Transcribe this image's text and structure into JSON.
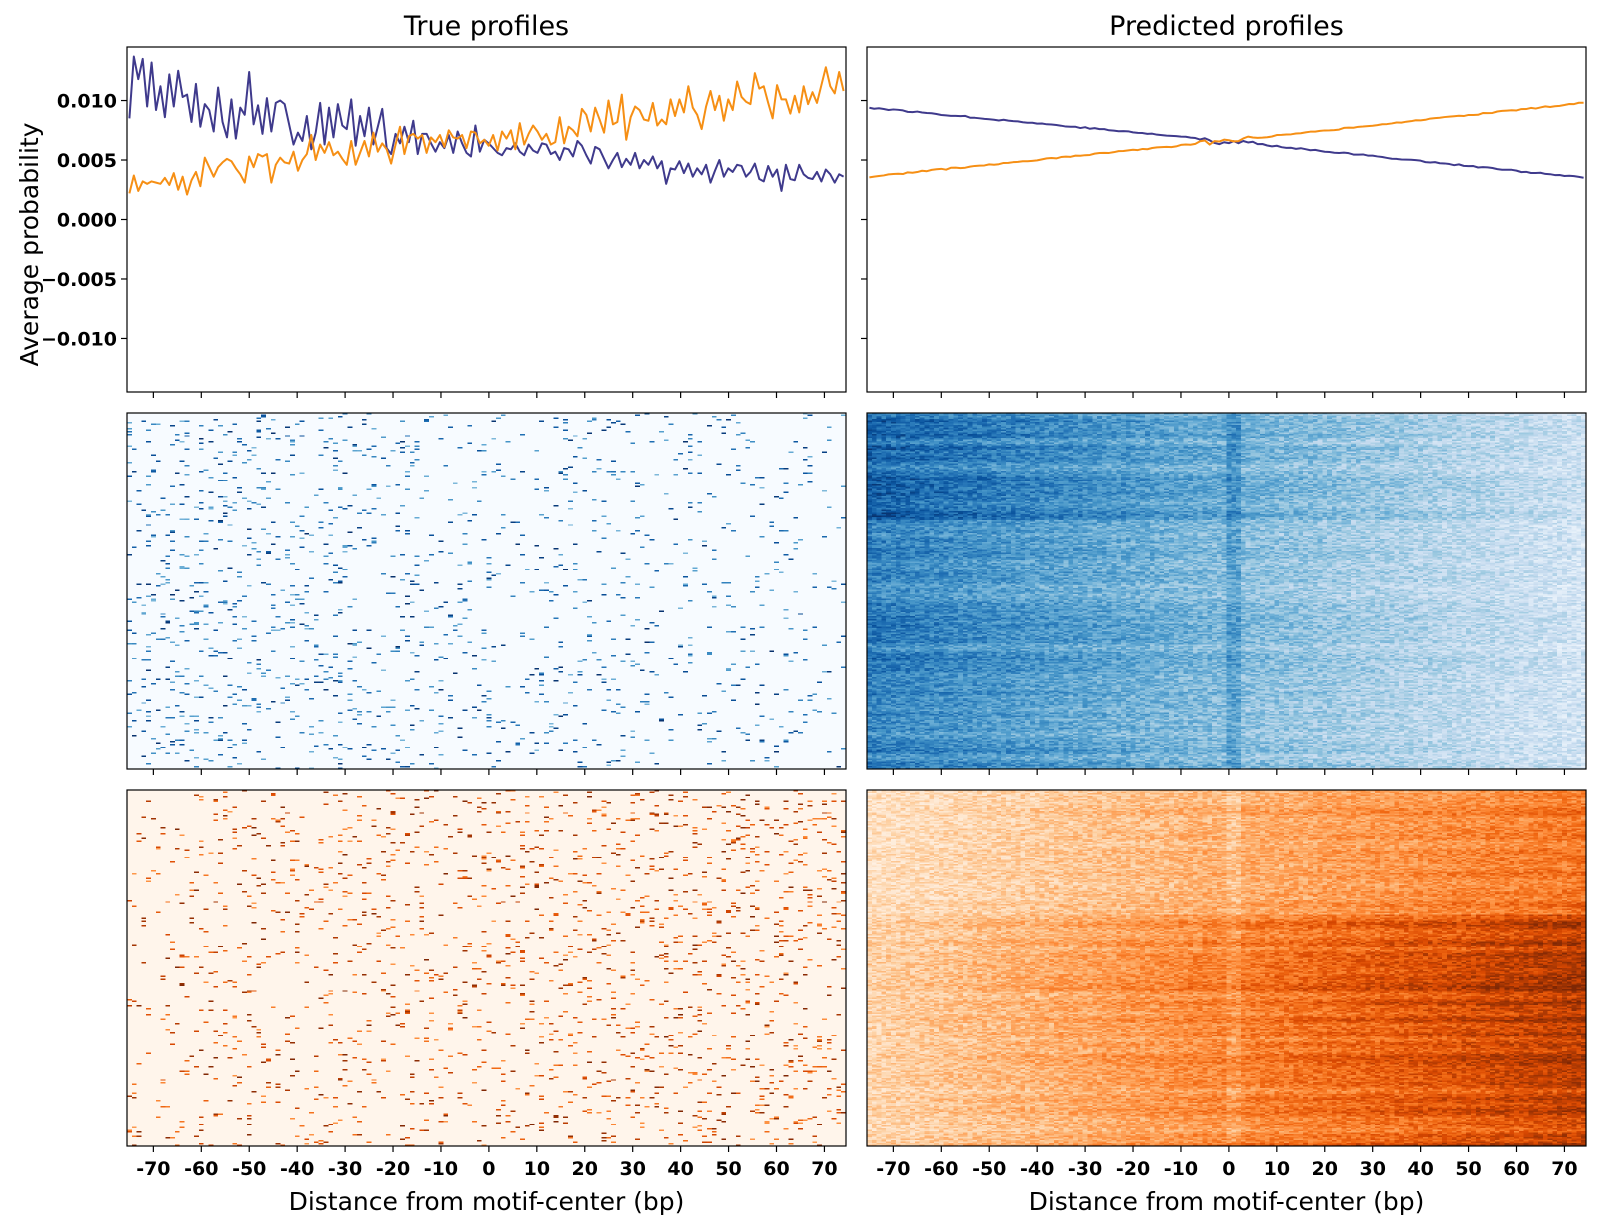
{
  "chart_data": [
    {
      "type": "line",
      "panel": "true-profile-line",
      "title": "True profiles",
      "xlabel": "",
      "ylabel": "Average probability",
      "xlim": [
        -75.5,
        74.5
      ],
      "ylim": [
        -0.0145,
        0.0145
      ],
      "xticks": [
        -70,
        -60,
        -50,
        -40,
        -30,
        -20,
        -10,
        0,
        10,
        20,
        30,
        40,
        50,
        60,
        70
      ],
      "yticks": [
        0.01,
        0.005,
        0.0,
        -0.005,
        -0.01
      ],
      "ytick_labels": [
        "0.010",
        "0.005",
        "0.000",
        "−0.005",
        "−0.010"
      ],
      "show_xtick_labels": false,
      "series": [
        {
          "color": "#3f3a8c",
          "values": [
            0.0085,
            0.0137,
            0.0118,
            0.0135,
            0.0095,
            0.0132,
            0.0092,
            0.0112,
            0.0086,
            0.0122,
            0.0095,
            0.0125,
            0.0103,
            0.0105,
            0.0082,
            0.0114,
            0.0078,
            0.0097,
            0.0092,
            0.0074,
            0.0111,
            0.0082,
            0.0069,
            0.0101,
            0.0068,
            0.0094,
            0.0088,
            0.0124,
            0.008,
            0.0096,
            0.0072,
            0.0102,
            0.0074,
            0.0098,
            0.01,
            0.0097,
            0.008,
            0.0063,
            0.0073,
            0.0066,
            0.0087,
            0.0059,
            0.0073,
            0.0098,
            0.0063,
            0.0094,
            0.0069,
            0.0097,
            0.0079,
            0.0076,
            0.0101,
            0.0062,
            0.0087,
            0.007,
            0.0094,
            0.0063,
            0.0078,
            0.0093,
            0.006,
            0.0055,
            0.0072,
            0.0064,
            0.0078,
            0.0065,
            0.0083,
            0.0055,
            0.0072,
            0.0072,
            0.0064,
            0.0057,
            0.0065,
            0.006,
            0.0071,
            0.0056,
            0.0074,
            0.0064,
            0.0056,
            0.0053,
            0.0079,
            0.0057,
            0.0067,
            0.0064,
            0.006,
            0.0056,
            0.0054,
            0.006,
            0.0059,
            0.0064,
            0.0057,
            0.0054,
            0.0063,
            0.0058,
            0.0056,
            0.0064,
            0.0063,
            0.0055,
            0.0057,
            0.005,
            0.006,
            0.0059,
            0.0053,
            0.0066,
            0.0062,
            0.0054,
            0.0047,
            0.0061,
            0.0059,
            0.0051,
            0.0043,
            0.005,
            0.0056,
            0.0044,
            0.0051,
            0.0046,
            0.0056,
            0.0043,
            0.005,
            0.0046,
            0.0053,
            0.0043,
            0.0049,
            0.003,
            0.0043,
            0.0042,
            0.0049,
            0.0039,
            0.0047,
            0.0036,
            0.0043,
            0.0038,
            0.0046,
            0.0031,
            0.0041,
            0.005,
            0.0036,
            0.0043,
            0.004,
            0.0046,
            0.0045,
            0.0036,
            0.004,
            0.0047,
            0.0034,
            0.0032,
            0.0045,
            0.0036,
            0.0042,
            0.0024,
            0.0046,
            0.0034,
            0.0033,
            0.0046,
            0.0038,
            0.0035,
            0.0034,
            0.004,
            0.0032,
            0.0042,
            0.0038,
            0.0031,
            0.0038,
            0.0036
          ]
        },
        {
          "color": "#f68f14",
          "values": [
            0.0022,
            0.0037,
            0.0024,
            0.0032,
            0.003,
            0.0032,
            0.0031,
            0.003,
            0.0035,
            0.0029,
            0.0039,
            0.0025,
            0.0036,
            0.0021,
            0.0033,
            0.004,
            0.0028,
            0.0052,
            0.0044,
            0.0036,
            0.0044,
            0.0048,
            0.0051,
            0.0049,
            0.0043,
            0.0038,
            0.0031,
            0.0053,
            0.0044,
            0.0055,
            0.0053,
            0.0055,
            0.0031,
            0.0046,
            0.0052,
            0.0048,
            0.0047,
            0.0057,
            0.0041,
            0.005,
            0.0055,
            0.0071,
            0.005,
            0.0063,
            0.0056,
            0.0065,
            0.0054,
            0.0057,
            0.0051,
            0.0046,
            0.0066,
            0.0046,
            0.0056,
            0.0066,
            0.0053,
            0.0073,
            0.0057,
            0.0064,
            0.0059,
            0.0047,
            0.0063,
            0.0078,
            0.0055,
            0.007,
            0.0072,
            0.0068,
            0.0071,
            0.0056,
            0.0069,
            0.0065,
            0.0071,
            0.0061,
            0.0075,
            0.0069,
            0.0068,
            0.0071,
            0.006,
            0.0074,
            0.0073,
            0.0064,
            0.0067,
            0.0062,
            0.0071,
            0.0058,
            0.0074,
            0.0068,
            0.0075,
            0.0059,
            0.0081,
            0.0063,
            0.0072,
            0.0079,
            0.0074,
            0.0067,
            0.0072,
            0.0063,
            0.0065,
            0.0086,
            0.0064,
            0.0078,
            0.0075,
            0.007,
            0.0093,
            0.0088,
            0.0074,
            0.0094,
            0.0084,
            0.0073,
            0.01,
            0.008,
            0.0082,
            0.0105,
            0.0067,
            0.0086,
            0.0095,
            0.0092,
            0.0084,
            0.0083,
            0.0098,
            0.0079,
            0.0084,
            0.008,
            0.0101,
            0.0087,
            0.0101,
            0.009,
            0.0112,
            0.0094,
            0.0088,
            0.0076,
            0.0095,
            0.0108,
            0.0092,
            0.0104,
            0.0083,
            0.0101,
            0.0092,
            0.0116,
            0.0103,
            0.0099,
            0.0097,
            0.0123,
            0.011,
            0.0112,
            0.0098,
            0.0085,
            0.0113,
            0.0101,
            0.0101,
            0.0089,
            0.0104,
            0.009,
            0.0112,
            0.0097,
            0.0107,
            0.0098,
            0.0113,
            0.0128,
            0.0112,
            0.0106,
            0.0124,
            0.0108
          ]
        }
      ]
    },
    {
      "type": "line",
      "panel": "predicted-profile-line",
      "title": "Predicted profiles",
      "xlabel": "",
      "ylabel": "",
      "xlim": [
        -75.5,
        74.5
      ],
      "ylim": [
        -0.0145,
        0.0145
      ],
      "xticks": [
        -70,
        -60,
        -50,
        -40,
        -30,
        -20,
        -10,
        0,
        10,
        20,
        30,
        40,
        50,
        60,
        70
      ],
      "yticks": [
        0.01,
        0.005,
        0.0,
        -0.005,
        -0.01
      ],
      "show_xtick_labels": false,
      "show_ytick_labels": false,
      "series": [
        {
          "color": "#3f3a8c",
          "values_from_trend": {
            "start": 0.0094,
            "mid": 0.0066,
            "end": 0.0035
          }
        },
        {
          "color": "#f68f14",
          "values_from_trend": {
            "start": 0.0036,
            "mid": 0.0066,
            "end": 0.0098
          }
        }
      ]
    },
    {
      "type": "heatmap",
      "panel": "true-positive-strand-heatmap",
      "colormap": "Blues",
      "xlim": [
        -75.5,
        74.5
      ],
      "xticks": [
        -70,
        -60,
        -50,
        -40,
        -30,
        -20,
        -10,
        0,
        10,
        20,
        30,
        40,
        50,
        60,
        70
      ],
      "show_xtick_labels": false,
      "style": "sparse"
    },
    {
      "type": "heatmap",
      "panel": "predicted-positive-strand-heatmap",
      "colormap": "Blues",
      "xlim": [
        -75.5,
        74.5
      ],
      "xticks": [
        -70,
        -60,
        -50,
        -40,
        -30,
        -20,
        -10,
        0,
        10,
        20,
        30,
        40,
        50,
        60,
        70
      ],
      "show_xtick_labels": false,
      "style": "dense"
    },
    {
      "type": "heatmap",
      "panel": "true-negative-strand-heatmap",
      "colormap": "Oranges",
      "xlabel": "Distance from motif-center (bp)",
      "xlim": [
        -75.5,
        74.5
      ],
      "xticks": [
        -70,
        -60,
        -50,
        -40,
        -30,
        -20,
        -10,
        0,
        10,
        20,
        30,
        40,
        50,
        60,
        70
      ],
      "show_xtick_labels": true,
      "style": "sparse"
    },
    {
      "type": "heatmap",
      "panel": "predicted-negative-strand-heatmap",
      "colormap": "Oranges",
      "xlabel": "Distance from motif-center (bp)",
      "xlim": [
        -75.5,
        74.5
      ],
      "xticks": [
        -70,
        -60,
        -50,
        -40,
        -30,
        -20,
        -10,
        0,
        10,
        20,
        30,
        40,
        50,
        60,
        70
      ],
      "show_xtick_labels": true,
      "style": "dense"
    }
  ]
}
